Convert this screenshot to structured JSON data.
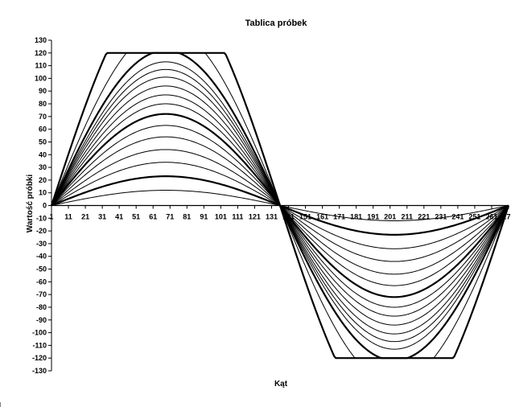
{
  "chart_data": {
    "type": "line",
    "title": "Tablica próbek",
    "xlabel": "Kąt",
    "ylabel": "Wartość próbki",
    "xlim": [
      1,
      271
    ],
    "ylim": [
      -130,
      130
    ],
    "x_tick_labels": [
      "1",
      "11",
      "21",
      "31",
      "41",
      "51",
      "61",
      "71",
      "81",
      "91",
      "101",
      "111",
      "121",
      "131",
      "141",
      "151",
      "161",
      "171",
      "181",
      "191",
      "201",
      "211",
      "221",
      "231",
      "241",
      "251",
      "261",
      "271"
    ],
    "y_tick_labels": [
      "130",
      "120",
      "110",
      "100",
      "90",
      "80",
      "70",
      "60",
      "50",
      "40",
      "30",
      "20",
      "10",
      "0",
      "-10",
      "-20",
      "-30",
      "-40",
      "-50",
      "-60",
      "-70",
      "-80",
      "-90",
      "-100",
      "-110",
      "-120",
      "-130"
    ],
    "grid": false,
    "legend": "none",
    "clip_level": 120,
    "zero_crossings": [
      1,
      136,
      271
    ],
    "line_color": "#000000",
    "series": [
      {
        "amplitude": 0,
        "bold": false
      },
      {
        "amplitude": 12,
        "bold": false
      },
      {
        "amplitude": 23,
        "bold": true
      },
      {
        "amplitude": 34,
        "bold": false
      },
      {
        "amplitude": 44,
        "bold": false
      },
      {
        "amplitude": 54,
        "bold": false
      },
      {
        "amplitude": 63,
        "bold": false
      },
      {
        "amplitude": 72,
        "bold": true
      },
      {
        "amplitude": 80,
        "bold": false
      },
      {
        "amplitude": 87,
        "bold": false
      },
      {
        "amplitude": 94,
        "bold": false
      },
      {
        "amplitude": 101,
        "bold": false
      },
      {
        "amplitude": 107,
        "bold": false
      },
      {
        "amplitude": 113,
        "bold": false
      },
      {
        "amplitude": 122,
        "bold": true
      },
      {
        "amplitude": 140,
        "bold": false
      },
      {
        "amplitude": 175,
        "bold": true
      }
    ]
  }
}
